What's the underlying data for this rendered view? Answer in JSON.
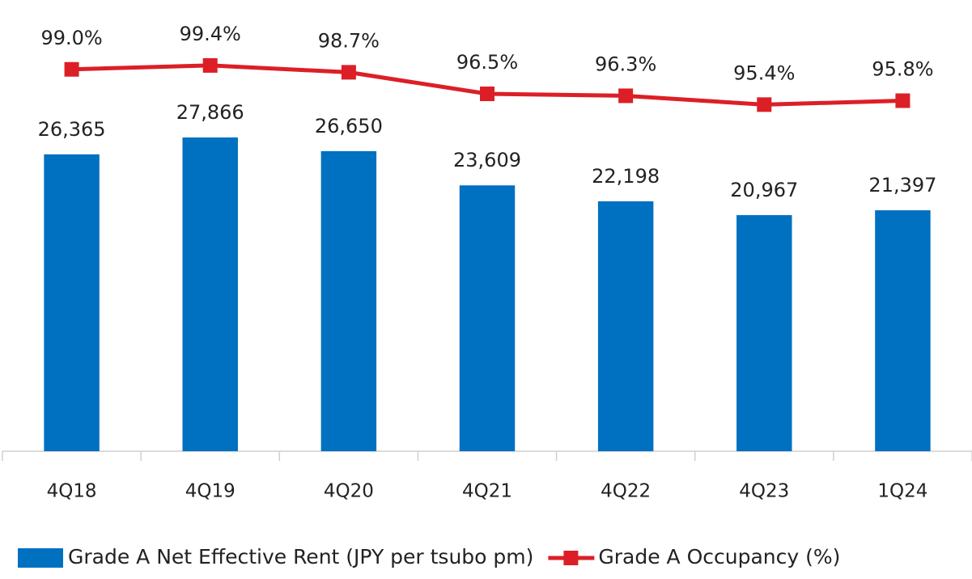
{
  "chart_data": {
    "type": "bar",
    "categories": [
      "4Q18",
      "4Q19",
      "4Q20",
      "4Q21",
      "4Q22",
      "4Q23",
      "1Q24"
    ],
    "ylim": [
      0,
      40000
    ],
    "y2lim": [
      60,
      106
    ],
    "series": [
      {
        "name": "Grade A Net Effective Rent (JPY per tsubo pm)",
        "type": "bar",
        "color": "#0070c0",
        "values": [
          26365,
          27866,
          26650,
          23609,
          22198,
          20967,
          21397
        ],
        "value_labels": [
          "26,365",
          "27,866",
          "26,650",
          "23,609",
          "22,198",
          "20,967",
          "21,397"
        ]
      },
      {
        "name": "Grade A Occupancy (%)",
        "type": "line",
        "axis": "y2",
        "color": "#dc1f26",
        "values": [
          99.0,
          99.4,
          98.7,
          96.5,
          96.3,
          95.4,
          95.8
        ],
        "value_labels": [
          "99.0%",
          "99.4%",
          "98.7%",
          "96.5%",
          "96.3%",
          "95.4%",
          "95.8%"
        ]
      }
    ],
    "legend": "bottom"
  }
}
